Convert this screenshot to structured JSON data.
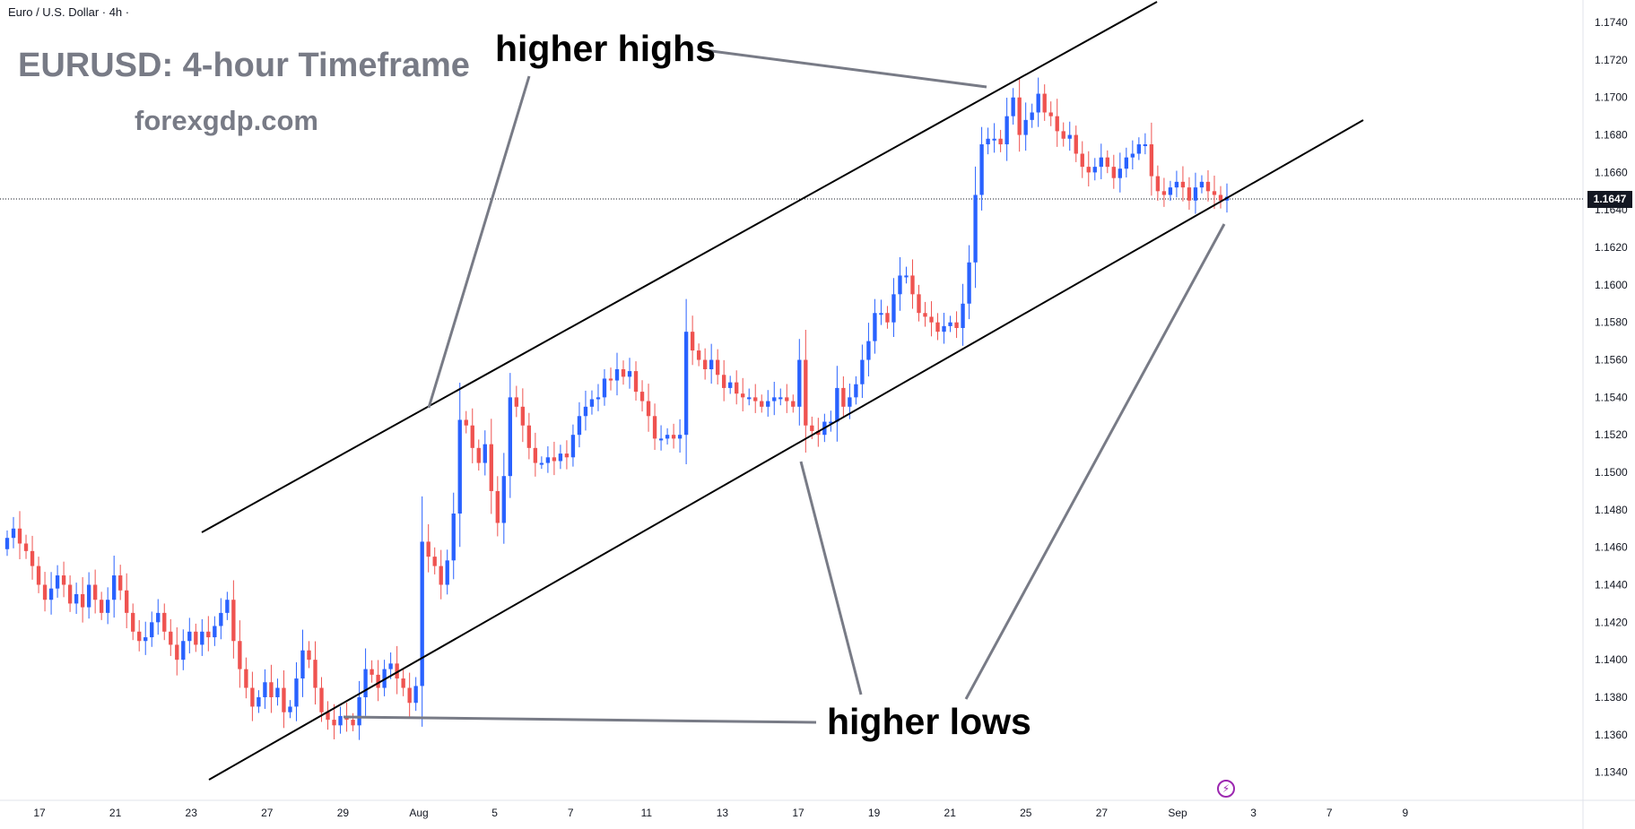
{
  "header": {
    "symbol_title": "Euro / U.S. Dollar · 4h ·",
    "headline": "EURUSD: 4-hour Timeframe",
    "site": "forexgdp.com"
  },
  "annotations": {
    "higher_highs": "higher highs",
    "higher_lows": "higher lows"
  },
  "last_price_badge": "1.1647",
  "icons": {
    "flash": "lightning-icon"
  },
  "colors": {
    "up": "#2962ff",
    "down": "#ef5350",
    "line": "#000000",
    "pointer": "#787b86"
  },
  "chart_data": {
    "type": "candlestick",
    "timeframe": "4h",
    "y_ticks": [
      "1.1340",
      "1.1360",
      "1.1380",
      "1.1400",
      "1.1420",
      "1.1440",
      "1.1460",
      "1.1480",
      "1.1500",
      "1.1520",
      "1.1540",
      "1.1560",
      "1.1580",
      "1.1600",
      "1.1620",
      "1.1640",
      "1.1660",
      "1.1680",
      "1.1700",
      "1.1720",
      "1.1740"
    ],
    "x_ticks": [
      "17",
      "21",
      "23",
      "27",
      "29",
      "Aug",
      "5",
      "7",
      "11",
      "13",
      "17",
      "19",
      "21",
      "25",
      "27",
      "Sep",
      "3",
      "7",
      "9"
    ],
    "ylim": [
      1.1325,
      1.1752
    ],
    "last_price": 1.1647,
    "closes": [
      1.1465,
      1.147,
      1.1462,
      1.1458,
      1.145,
      1.144,
      1.1432,
      1.1438,
      1.1445,
      1.144,
      1.143,
      1.1435,
      1.1428,
      1.144,
      1.1432,
      1.1425,
      1.1432,
      1.1445,
      1.1437,
      1.1425,
      1.1415,
      1.141,
      1.1412,
      1.142,
      1.1425,
      1.1415,
      1.1408,
      1.14,
      1.141,
      1.1415,
      1.1408,
      1.1415,
      1.1412,
      1.1418,
      1.1425,
      1.1432,
      1.141,
      1.1395,
      1.1385,
      1.1375,
      1.138,
      1.1388,
      1.138,
      1.1385,
      1.1372,
      1.1375,
      1.139,
      1.1405,
      1.14,
      1.1385,
      1.1372,
      1.1368,
      1.1365,
      1.137,
      1.1368,
      1.1365,
      1.138,
      1.1395,
      1.1392,
      1.1385,
      1.1395,
      1.1398,
      1.139,
      1.1385,
      1.1377,
      1.1386,
      1.1463,
      1.1455,
      1.145,
      1.144,
      1.1453,
      1.1478,
      1.1528,
      1.1525,
      1.1513,
      1.1505,
      1.1515,
      1.149,
      1.1473,
      1.1498,
      1.154,
      1.1535,
      1.1525,
      1.1513,
      1.1505,
      1.1505,
      1.1508,
      1.1506,
      1.151,
      1.1508,
      1.152,
      1.153,
      1.1535,
      1.1539,
      1.154,
      1.155,
      1.1549,
      1.1555,
      1.1551,
      1.1554,
      1.1543,
      1.1538,
      1.153,
      1.1518,
      1.1518,
      1.152,
      1.1518,
      1.152,
      1.1575,
      1.1565,
      1.156,
      1.1555,
      1.156,
      1.1552,
      1.1545,
      1.1548,
      1.1542,
      1.154,
      1.154,
      1.1538,
      1.1535,
      1.1538,
      1.154,
      1.154,
      1.1538,
      1.1535,
      1.156,
      1.1525,
      1.1522,
      1.152,
      1.1527,
      1.1527,
      1.1545,
      1.1535,
      1.154,
      1.1547,
      1.156,
      1.157,
      1.1585,
      1.1585,
      1.158,
      1.1595,
      1.1605,
      1.1605,
      1.1595,
      1.1585,
      1.1583,
      1.158,
      1.1575,
      1.1578,
      1.158,
      1.1577,
      1.159,
      1.1612,
      1.1648,
      1.1675,
      1.1678,
      1.1678,
      1.1675,
      1.169,
      1.17,
      1.168,
      1.1688,
      1.1692,
      1.1702,
      1.1692,
      1.169,
      1.1682,
      1.1678,
      1.168,
      1.167,
      1.1663,
      1.166,
      1.1663,
      1.1668,
      1.1663,
      1.1657,
      1.1662,
      1.1668,
      1.167,
      1.1675,
      1.1675,
      1.1658,
      1.165,
      1.1648,
      1.1652,
      1.1655,
      1.1652,
      1.1645,
      1.1652,
      1.1655,
      1.165,
      1.1648,
      1.1645,
      1.1647
    ]
  }
}
